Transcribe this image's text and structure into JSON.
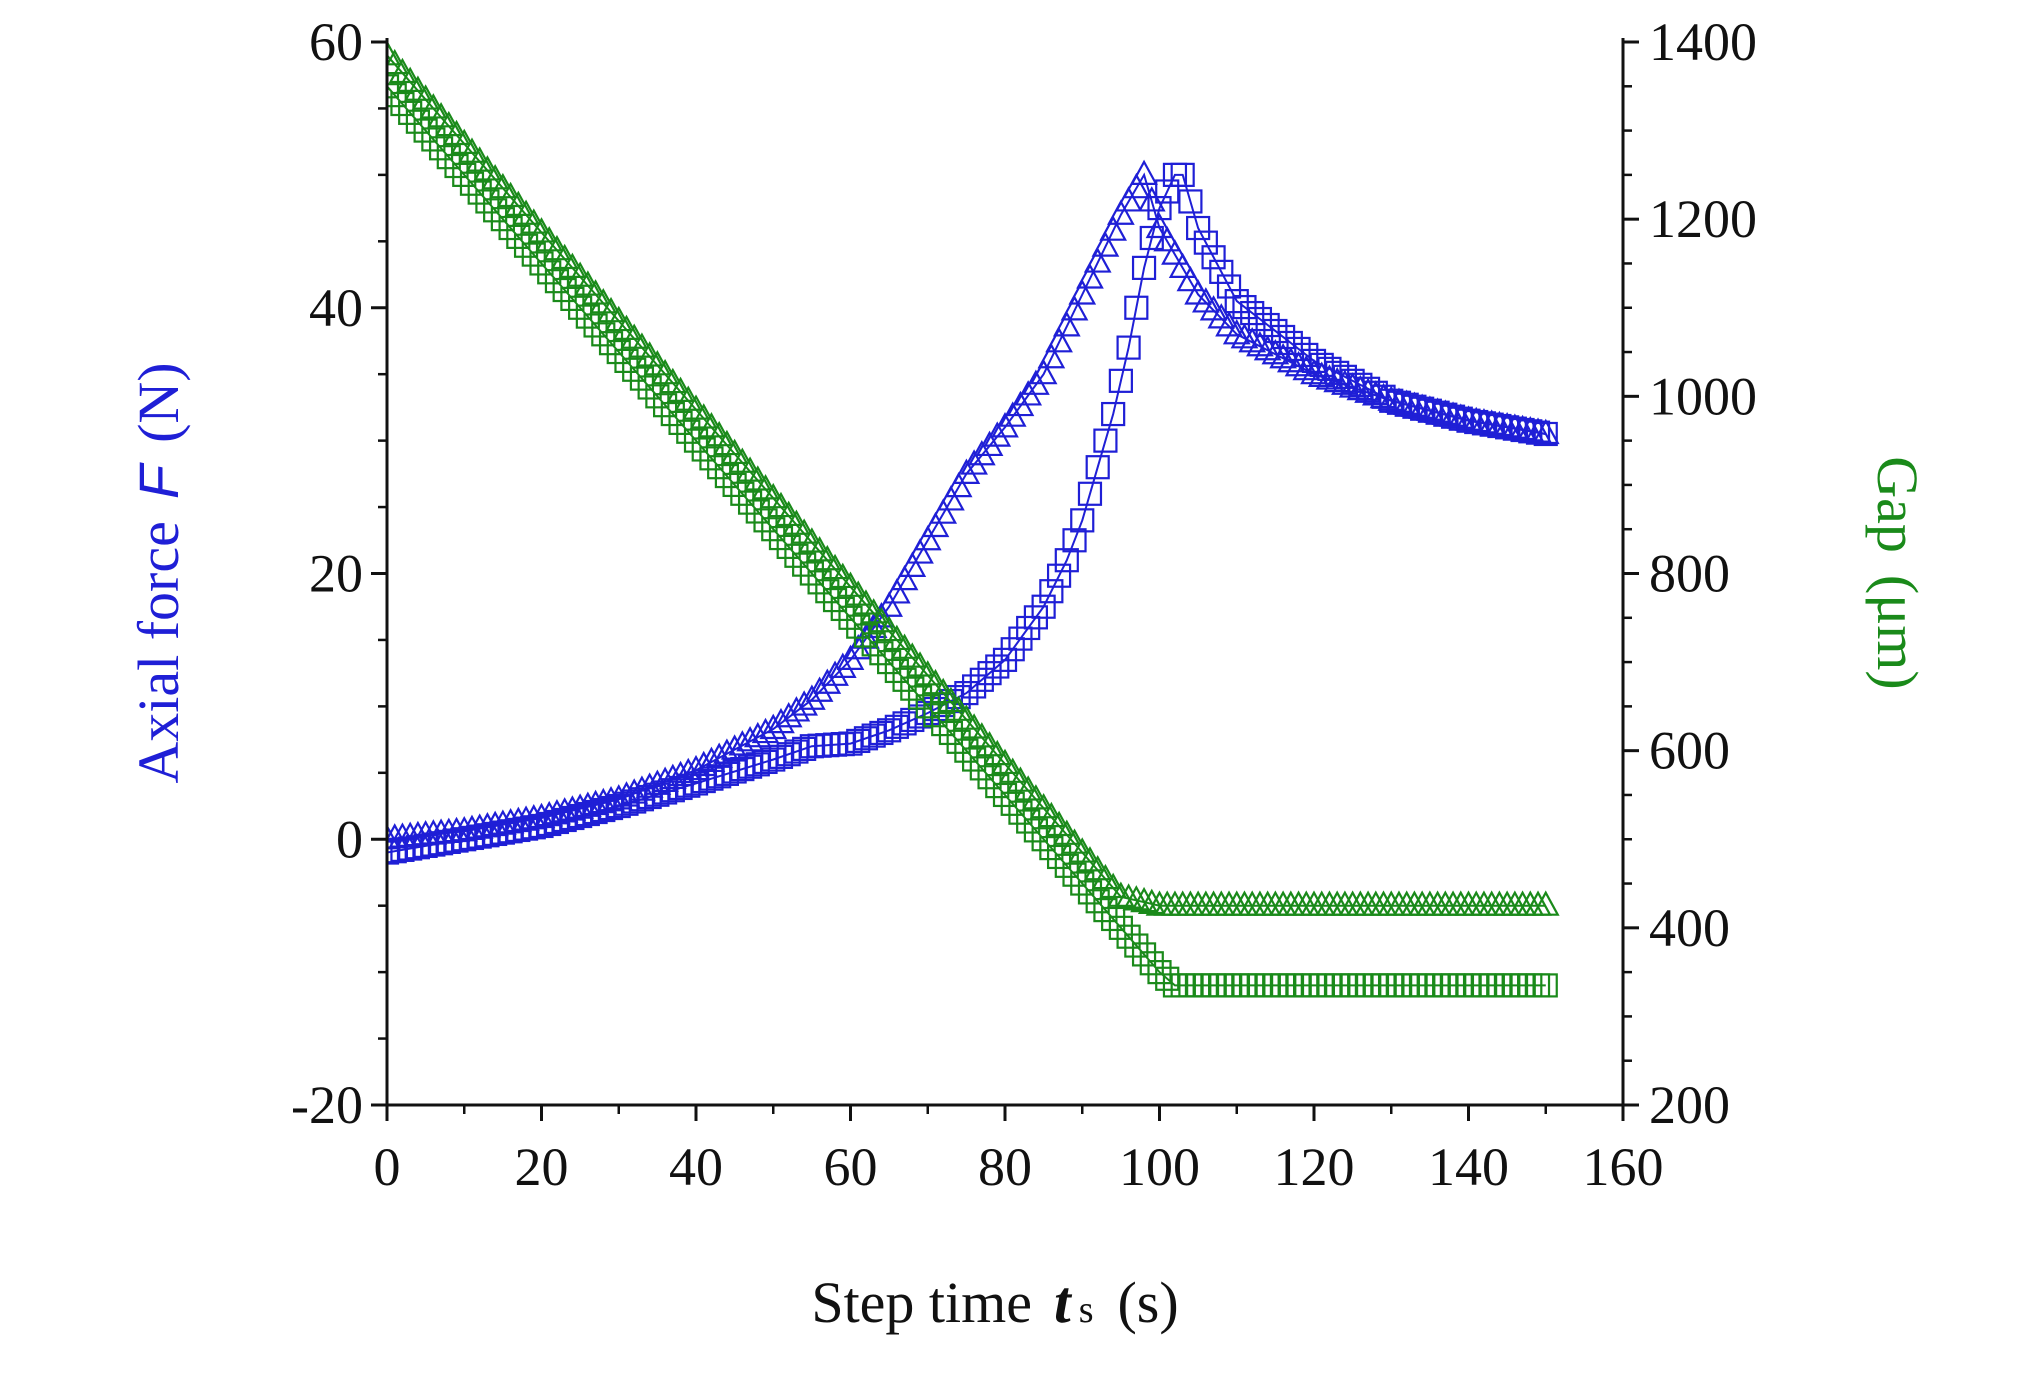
{
  "chart_data": {
    "type": "scatter",
    "title": "",
    "colors": {
      "force": "#1f1fd6",
      "gap": "#1a8a1a",
      "axis": "#111111"
    },
    "xlabel": {
      "main": "Step time",
      "var": "t",
      "sub": "s",
      "unit": "(s)"
    },
    "ylabel_left": {
      "main": "Axial force",
      "var": "F",
      "unit": "(N)"
    },
    "ylabel_right": {
      "main": "Gap",
      "unit": "(μm)"
    },
    "xlim": [
      0,
      160
    ],
    "ylim_left": [
      -20,
      60
    ],
    "ylim_right": [
      200,
      1400
    ],
    "x_ticks": [
      "0",
      "20",
      "40",
      "60",
      "80",
      "100",
      "120",
      "140",
      "160"
    ],
    "y_left_ticks": [
      "-20",
      "0",
      "20",
      "40",
      "60"
    ],
    "y_right_ticks": [
      "200",
      "400",
      "600",
      "800",
      "1000",
      "1200",
      "1400"
    ],
    "grid": false,
    "legend": "none",
    "series": [
      {
        "axis": "left",
        "marker": "triangle",
        "color": "#1f1fd6",
        "x": [
          0,
          10,
          20,
          30,
          40,
          50,
          55,
          60,
          65,
          70,
          75,
          80,
          85,
          90,
          95,
          98,
          100,
          105,
          110,
          120,
          130,
          140,
          150
        ],
        "y": [
          0,
          0.6,
          1.6,
          3.0,
          5.2,
          8.3,
          10.5,
          13.5,
          17.5,
          22.5,
          27.5,
          31.0,
          35.0,
          41.0,
          47.0,
          50.0,
          46.0,
          41.0,
          38.0,
          35.0,
          33.0,
          31.5,
          30.5
        ]
      },
      {
        "axis": "left",
        "marker": "square",
        "color": "#1f1fd6",
        "x": [
          0,
          10,
          20,
          30,
          40,
          50,
          55,
          60,
          65,
          70,
          75,
          80,
          85,
          88,
          90,
          92,
          94,
          96,
          98,
          100,
          102,
          103,
          105,
          110,
          120,
          130,
          140,
          150
        ],
        "y": [
          -1.0,
          0,
          1.0,
          2.5,
          4.2,
          6.0,
          7.0,
          7.2,
          8.2,
          9.5,
          11.0,
          13.5,
          17.5,
          21.0,
          24.0,
          28.0,
          32.0,
          37.0,
          43.0,
          47.5,
          50.0,
          50.0,
          46.0,
          40.5,
          36.0,
          33.0,
          31.5,
          30.5
        ]
      },
      {
        "axis": "right",
        "marker": "triangle",
        "color": "#1a8a1a",
        "x": [
          0,
          10,
          20,
          30,
          40,
          50,
          60,
          70,
          80,
          90,
          95,
          100,
          110,
          120,
          130,
          140,
          150
        ],
        "y": [
          1385,
          1285,
          1185,
          1085,
          985,
          885,
          785,
          685,
          585,
          485,
          435,
          425,
          425,
          425,
          425,
          425,
          425
        ]
      },
      {
        "axis": "right",
        "marker": "square",
        "color": "#1a8a1a",
        "x": [
          0,
          10,
          20,
          30,
          40,
          50,
          60,
          70,
          80,
          90,
          95,
          100,
          102,
          110,
          120,
          130,
          140,
          150
        ],
        "y": [
          1350,
          1250,
          1150,
          1050,
          950,
          850,
          750,
          650,
          550,
          450,
          400,
          350,
          335,
          335,
          335,
          335,
          335,
          335
        ]
      }
    ]
  }
}
